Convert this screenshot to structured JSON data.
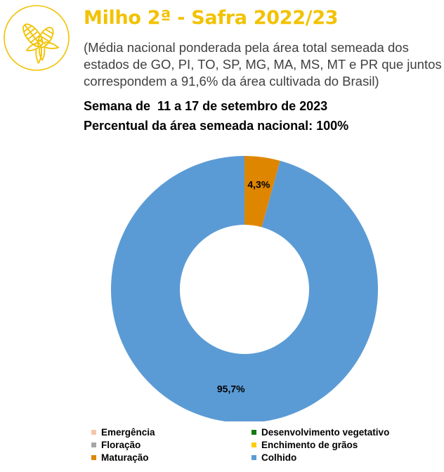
{
  "header": {
    "title": "Milho 2ª - Safra 2022/23",
    "subtitle": "(Média nacional ponderada pela área total semeada dos estados de GO, PI, TO, SP, MG, MA, MS, MT e PR que juntos correspondem a 91,6% da área cultivada do Brasil)",
    "week": "Semana de  11 a 17 de setembro de 2023",
    "area_percent": "Percentual da área semeada nacional: 100%"
  },
  "logo": {
    "icon": "corn-icon",
    "color": "#f2c200"
  },
  "chart_data": {
    "type": "pie",
    "donut": true,
    "categories": [
      "Emergência",
      "Desenvolvimento vegetativo",
      "Floração",
      "Enchimento de grãos",
      "Maturação",
      "Colhido"
    ],
    "values": [
      0,
      0,
      0,
      0,
      4.3,
      95.7
    ],
    "colors": [
      "#f4c7a9",
      "#127a12",
      "#a6a6a6",
      "#ffcc00",
      "#df8600",
      "#5b9bd5"
    ],
    "data_labels": [
      "",
      "",
      "",
      "",
      "4,3%",
      "95,7%"
    ],
    "legend_position": "bottom"
  }
}
